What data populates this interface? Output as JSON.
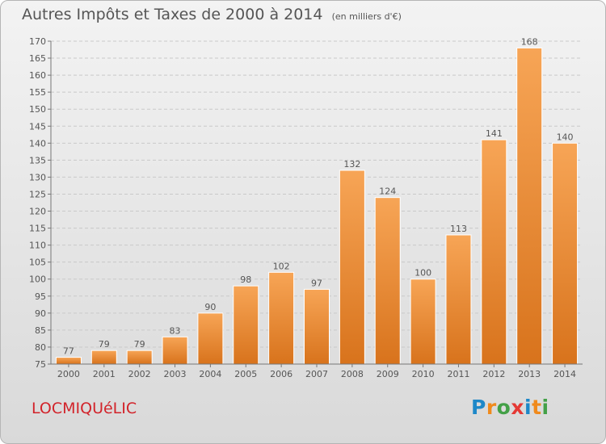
{
  "title": "Autres Impôts et Taxes de 2000 à 2014",
  "subtitle": "(en milliers d'€)",
  "town": "LOCMIQUéLIC",
  "logo": {
    "text": "Proxiti",
    "colors": [
      "#1e88c8",
      "#f08a1c",
      "#43a047",
      "#e53935",
      "#1e88c8",
      "#f08a1c",
      "#43a047"
    ]
  },
  "colors": {
    "bar_light": "#f7a556",
    "bar_dark": "#d8731c",
    "town": "#d2232a",
    "text": "#555555"
  },
  "chart_data": {
    "type": "bar",
    "title": "Autres Impôts et Taxes de 2000 à 2014",
    "subtitle": "(en milliers d'€)",
    "xlabel": "",
    "ylabel": "",
    "categories": [
      "2000",
      "2001",
      "2002",
      "2003",
      "2004",
      "2005",
      "2006",
      "2007",
      "2008",
      "2009",
      "2010",
      "2011",
      "2012",
      "2013",
      "2014"
    ],
    "values": [
      77,
      79,
      79,
      83,
      90,
      98,
      102,
      97,
      132,
      124,
      100,
      113,
      141,
      168,
      140
    ],
    "ylim": [
      75,
      170
    ],
    "yticks": [
      75,
      80,
      85,
      90,
      95,
      100,
      105,
      110,
      115,
      120,
      125,
      130,
      135,
      140,
      145,
      150,
      155,
      160,
      165,
      170
    ],
    "grid": true,
    "legend": "none"
  }
}
